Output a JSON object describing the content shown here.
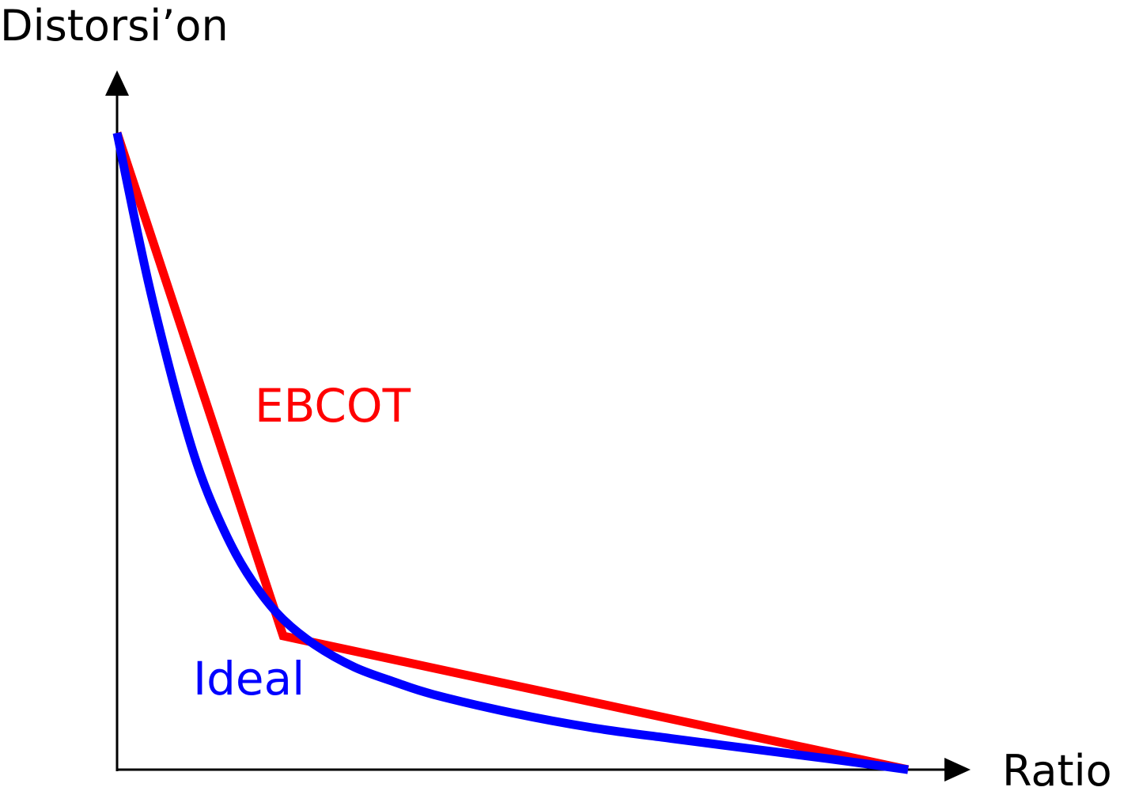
{
  "chart_data": {
    "type": "line",
    "xlabel": "Ratio",
    "ylabel": "Distorsi’on",
    "grid": false,
    "ticks": "none",
    "xlim": [
      0,
      100
    ],
    "ylim": [
      0,
      100
    ],
    "series": [
      {
        "name": "EBCOT",
        "color": "#ff0000",
        "x": [
          0,
          21,
          100
        ],
        "y": [
          100,
          21,
          0
        ]
      },
      {
        "name": "Ideal",
        "color": "#0000ff",
        "x": [
          0,
          2,
          4,
          6,
          8,
          10,
          12,
          15,
          18,
          21,
          25,
          30,
          35,
          40,
          50,
          60,
          70,
          80,
          90,
          100
        ],
        "y": [
          100,
          87.8,
          76.3,
          66.1,
          56.7,
          48.4,
          41.8,
          33.9,
          28.0,
          23.6,
          19.6,
          16.1,
          13.8,
          11.8,
          8.9,
          6.6,
          4.9,
          3.3,
          1.7,
          0
        ]
      }
    ]
  }
}
